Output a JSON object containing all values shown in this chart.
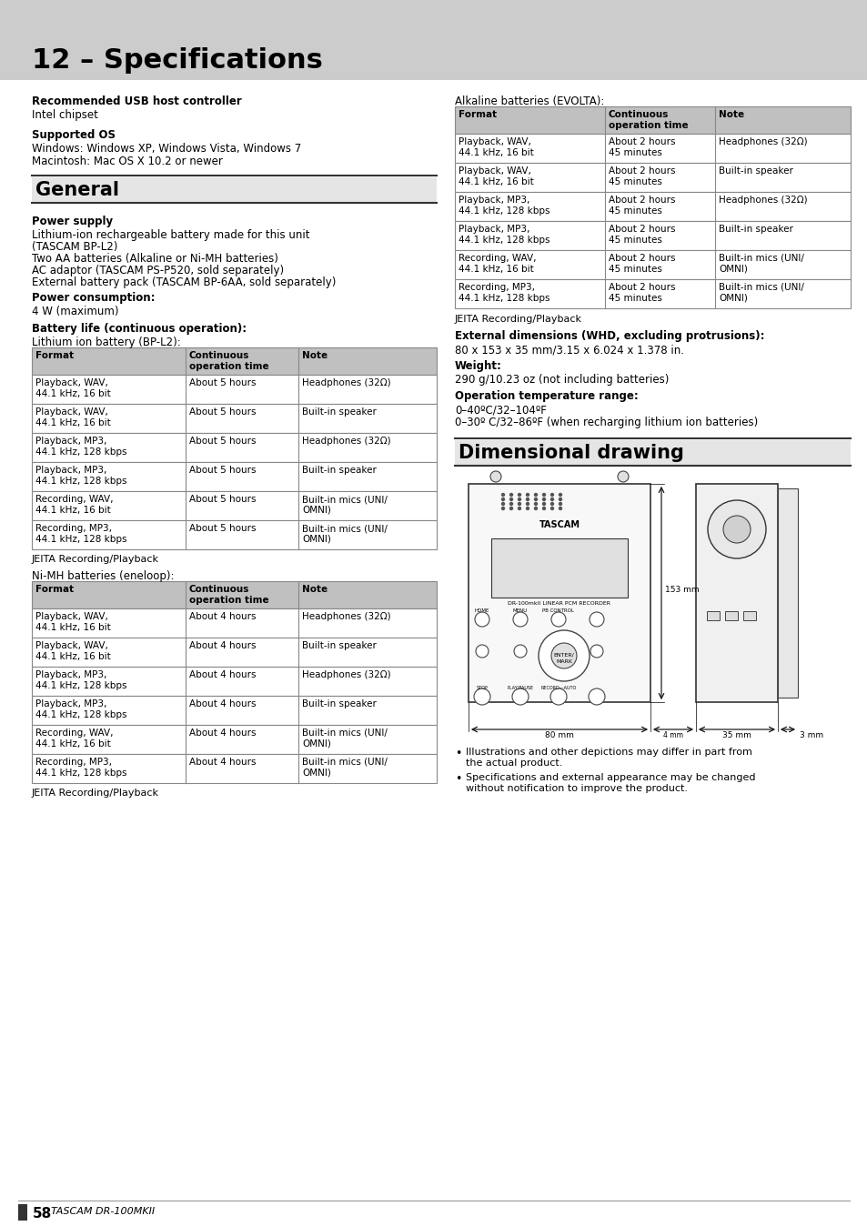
{
  "page_bg": "#ffffff",
  "header_bg": "#cccccc",
  "header_title": "12 – Specifications",
  "section_general_title": "General",
  "section_dim_title": "Dimensional drawing",
  "usb_header": "Recommended USB host controller",
  "usb_text": "Intel chipset",
  "os_header": "Supported OS",
  "os_text1": "Windows: Windows XP, Windows Vista, Windows 7",
  "os_text2": "Macintosh: Mac OS X 10.2 or newer",
  "power_supply_header": "Power supply",
  "power_supply_lines": [
    "Lithium-ion rechargeable battery made for this unit",
    "(TASCAM BP-L2)",
    "Two AA batteries (Alkaline or Ni-MH batteries)",
    "AC adaptor (TASCAM PS-P520, sold separately)",
    "External battery pack (TASCAM BP-6AA, sold separately)"
  ],
  "power_consumption_header": "Power consumption:",
  "power_consumption_text": "4 W (maximum)",
  "battery_life_header": "Battery life (continuous operation):",
  "lithium_label": "Lithium ion battery (BP-L2):",
  "table_col_headers": [
    "Format",
    "Continuous\noperation time",
    "Note"
  ],
  "lithium_table": [
    [
      "Playback, WAV,\n44.1 kHz, 16 bit",
      "About 5 hours",
      "Headphones (32Ω)"
    ],
    [
      "Playback, WAV,\n44.1 kHz, 16 bit",
      "About 5 hours",
      "Built-in speaker"
    ],
    [
      "Playback, MP3,\n44.1 kHz, 128 kbps",
      "About 5 hours",
      "Headphones (32Ω)"
    ],
    [
      "Playback, MP3,\n44.1 kHz, 128 kbps",
      "About 5 hours",
      "Built-in speaker"
    ],
    [
      "Recording, WAV,\n44.1 kHz, 16 bit",
      "About 5 hours",
      "Built-in mics (UNI/\nOMNI)"
    ],
    [
      "Recording, MP3,\n44.1 kHz, 128 kbps",
      "About 5 hours",
      "Built-in mics (UNI/\nOMNI)"
    ]
  ],
  "jeita_text": "JEITA Recording/Playback",
  "nimh_label": "Ni-MH batteries (eneloop):",
  "nimh_table": [
    [
      "Playback, WAV,\n44.1 kHz, 16 bit",
      "About 4 hours",
      "Headphones (32Ω)"
    ],
    [
      "Playback, WAV,\n44.1 kHz, 16 bit",
      "About 4 hours",
      "Built-in speaker"
    ],
    [
      "Playback, MP3,\n44.1 kHz, 128 kbps",
      "About 4 hours",
      "Headphones (32Ω)"
    ],
    [
      "Playback, MP3,\n44.1 kHz, 128 kbps",
      "About 4 hours",
      "Built-in speaker"
    ],
    [
      "Recording, WAV,\n44.1 kHz, 16 bit",
      "About 4 hours",
      "Built-in mics (UNI/\nOMNI)"
    ],
    [
      "Recording, MP3,\n44.1 kHz, 128 kbps",
      "About 4 hours",
      "Built-in mics (UNI/\nOMNI)"
    ]
  ],
  "alkaline_label": "Alkaline batteries (EVOLTA):",
  "alkaline_table": [
    [
      "Playback, WAV,\n44.1 kHz, 16 bit",
      "About 2 hours\n45 minutes",
      "Headphones (32Ω)"
    ],
    [
      "Playback, WAV,\n44.1 kHz, 16 bit",
      "About 2 hours\n45 minutes",
      "Built-in speaker"
    ],
    [
      "Playback, MP3,\n44.1 kHz, 128 kbps",
      "About 2 hours\n45 minutes",
      "Headphones (32Ω)"
    ],
    [
      "Playback, MP3,\n44.1 kHz, 128 kbps",
      "About 2 hours\n45 minutes",
      "Built-in speaker"
    ],
    [
      "Recording, WAV,\n44.1 kHz, 16 bit",
      "About 2 hours\n45 minutes",
      "Built-in mics (UNI/\nOMNI)"
    ],
    [
      "Recording, MP3,\n44.1 kHz, 128 kbps",
      "About 2 hours\n45 minutes",
      "Built-in mics (UNI/\nOMNI)"
    ]
  ],
  "ext_dim_header": "External dimensions (WHD, excluding protrusions):",
  "ext_dim_text": "80 x 153 x 35 mm/3.15 x 6.024 x 1.378 in.",
  "weight_header": "Weight:",
  "weight_text": "290 g/10.23 oz (not including batteries)",
  "op_temp_header": "Operation temperature range:",
  "op_temp_lines": [
    "0–40ºC/32–104ºF",
    "0–30º C/32–86ºF (when recharging lithium ion batteries)"
  ],
  "bullet1": "Illustrations and other depictions may differ in part from\nthe actual product.",
  "bullet2": "Specifications and external appearance may be changed\nwithout notification to improve the product.",
  "footer_text": "58",
  "footer_brand": "TASCAM DR-100MKII",
  "table_header_bg": "#c0c0c0",
  "table_border_color": "#888888",
  "table_font_size": 7.5,
  "body_font_size": 8.5,
  "header_font_size": 22,
  "section_font_size": 15
}
